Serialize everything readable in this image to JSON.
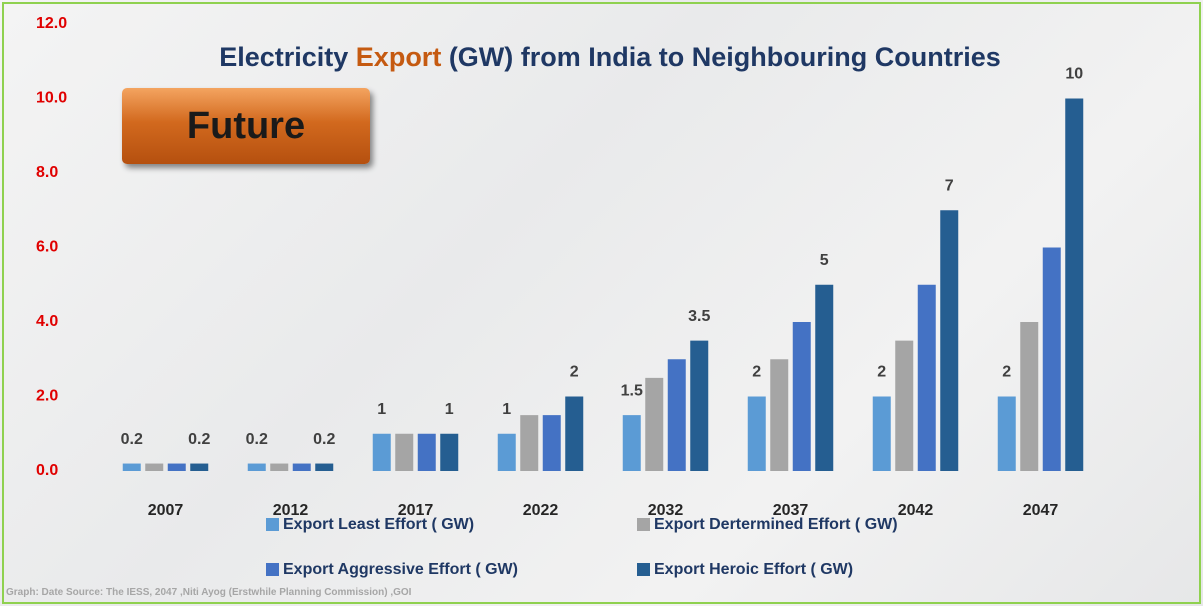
{
  "chart_data": {
    "type": "bar",
    "title": {
      "parts": [
        "Electricity ",
        "Export",
        " (GW) from India to Neighbouring Countries"
      ],
      "highlight": 1,
      "color": "#1f3864",
      "highlight_color": "#c55a11"
    },
    "badge": "Future",
    "source": "Graph: Date Source: The IESS, 2047 ,Niti Ayog (Erstwhile Planning Commission) ,GOI",
    "categories": [
      "2007",
      "2012",
      "2017",
      "2022",
      "2032",
      "2037",
      "2042",
      "2047"
    ],
    "series": [
      {
        "name": "Export Least Effort ( GW)",
        "color": "#5b9bd5",
        "data_labels": true,
        "values": [
          0.2,
          0.2,
          1,
          1,
          1.5,
          2,
          2,
          2
        ]
      },
      {
        "name": "Export Dertermined Effort ( GW)",
        "color": "#a5a5a5",
        "data_labels": false,
        "values": [
          0.2,
          0.2,
          1,
          1.5,
          2.5,
          3,
          3.5,
          4
        ]
      },
      {
        "name": "Export Aggressive Effort ( GW)",
        "color": "#4472c4",
        "data_labels": false,
        "values": [
          0.2,
          0.2,
          1,
          1.5,
          3,
          4,
          5,
          6
        ]
      },
      {
        "name": "Export Heroic Effort ( GW)",
        "color": "#255e91",
        "data_labels": true,
        "values": [
          0.2,
          0.2,
          1,
          2,
          3.5,
          5,
          7,
          10
        ]
      }
    ],
    "ylim": [
      0,
      12
    ],
    "yticks": [
      {
        "value": 0,
        "label": "0.0"
      },
      {
        "value": 2,
        "label": "2.0"
      },
      {
        "value": 4,
        "label": "4.0"
      },
      {
        "value": 6,
        "label": "6.0"
      },
      {
        "value": 8,
        "label": "8.0"
      },
      {
        "value": 10,
        "label": "10.0"
      },
      {
        "value": 12,
        "label": "12.0"
      }
    ],
    "ytick_color": "#e00000",
    "grid": false
  }
}
